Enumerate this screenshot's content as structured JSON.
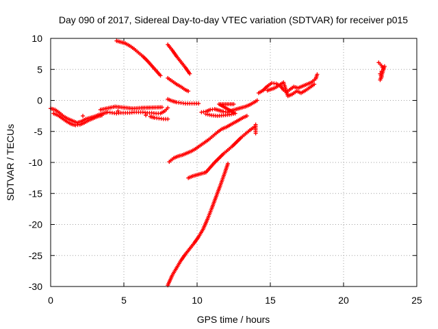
{
  "chart_data": {
    "type": "scatter",
    "title": "Day 090 of 2017, Sidereal Day-to-day VTEC variation (SDTVAR) for receiver p015",
    "xlabel": "GPS time / hours",
    "ylabel": "SDTVAR / TECUs",
    "xlim": [
      0,
      25
    ],
    "ylim": [
      -30,
      10
    ],
    "xticks": [
      0,
      5,
      10,
      15,
      20,
      25
    ],
    "xtick_labels": [
      "0",
      "5",
      "10",
      "15",
      "20",
      "25"
    ],
    "yticks": [
      -30,
      -25,
      -20,
      -15,
      -10,
      -5,
      0,
      5,
      10
    ],
    "ytick_labels": [
      "-30",
      "-25",
      "-20",
      "-15",
      "-10",
      "-5",
      "0",
      "5",
      "10"
    ],
    "grid": true,
    "grid_style": "dotted",
    "marker": "plus",
    "color": "#ff0000",
    "series": [
      {
        "points": [
          [
            0.0,
            -1.3
          ],
          [
            0.3,
            -1.5
          ],
          [
            0.6,
            -2.0
          ],
          [
            0.9,
            -2.6
          ],
          [
            1.2,
            -3.0
          ],
          [
            1.5,
            -3.3
          ],
          [
            1.8,
            -3.6
          ],
          [
            2.1,
            -3.4
          ],
          [
            2.4,
            -3.0
          ],
          [
            2.7,
            -2.8
          ],
          [
            3.0,
            -2.6
          ],
          [
            3.3,
            -2.3
          ],
          [
            3.6,
            -2.1
          ],
          [
            3.9,
            -1.9
          ],
          [
            4.2,
            -2.0
          ],
          [
            4.5,
            -2.1
          ],
          [
            4.8,
            -2.0
          ],
          [
            5.1,
            -2.0
          ],
          [
            5.4,
            -2.0
          ],
          [
            5.7,
            -1.9
          ],
          [
            6.0,
            -1.9
          ],
          [
            6.3,
            -1.9
          ],
          [
            6.6,
            -2.0
          ],
          [
            6.9,
            -2.0
          ],
          [
            7.2,
            -2.1
          ],
          [
            7.5,
            -2.1
          ],
          [
            7.8,
            -1.7
          ],
          [
            8.0,
            -1.2
          ],
          [
            0.2,
            -2.1
          ],
          [
            0.5,
            -2.4
          ],
          [
            0.8,
            -2.9
          ],
          [
            1.1,
            -3.4
          ],
          [
            1.4,
            -3.8
          ],
          [
            1.7,
            -4.0
          ],
          [
            2.0,
            -3.9
          ],
          [
            2.3,
            -3.6
          ],
          [
            2.6,
            -3.2
          ],
          [
            2.9,
            -2.9
          ],
          [
            3.2,
            -2.6
          ],
          [
            3.5,
            -2.4
          ],
          [
            6.8,
            -2.6
          ],
          [
            7.1,
            -2.8
          ],
          [
            7.4,
            -2.9
          ],
          [
            7.7,
            -3.0
          ],
          [
            8.0,
            -3.0
          ],
          [
            3.4,
            -1.5
          ],
          [
            4.4,
            -1.0
          ],
          [
            5.6,
            -1.3
          ],
          [
            6.2,
            -1.2
          ],
          [
            7.6,
            -1.1
          ],
          [
            2.2,
            -2.5
          ],
          [
            4.6,
            -1.7
          ],
          [
            6.5,
            -2.4
          ]
        ]
      },
      {
        "points": [
          [
            4.5,
            9.6
          ],
          [
            4.8,
            9.4
          ],
          [
            5.1,
            9.2
          ],
          [
            5.4,
            8.8
          ],
          [
            5.7,
            8.3
          ],
          [
            6.0,
            7.7
          ],
          [
            6.3,
            7.1
          ],
          [
            6.6,
            6.4
          ],
          [
            6.9,
            5.6
          ],
          [
            7.2,
            4.8
          ],
          [
            7.5,
            4.0
          ]
        ]
      },
      {
        "points": [
          [
            8.0,
            9.0
          ],
          [
            8.3,
            8.1
          ],
          [
            8.6,
            7.1
          ],
          [
            8.9,
            6.2
          ],
          [
            9.2,
            5.3
          ],
          [
            9.5,
            4.3
          ]
        ]
      },
      {
        "points": [
          [
            8.0,
            3.6
          ],
          [
            8.3,
            3.1
          ],
          [
            8.6,
            2.6
          ],
          [
            8.9,
            2.2
          ],
          [
            9.2,
            1.7
          ],
          [
            9.4,
            1.5
          ]
        ]
      },
      {
        "points": [
          [
            8.0,
            0.2
          ],
          [
            8.3,
            -0.1
          ],
          [
            8.6,
            -0.3
          ],
          [
            8.9,
            -0.4
          ],
          [
            9.2,
            -0.5
          ],
          [
            9.5,
            -0.5
          ],
          [
            9.8,
            -0.5
          ],
          [
            10.1,
            -0.5
          ]
        ]
      },
      {
        "points": [
          [
            10.3,
            -1.9
          ],
          [
            10.6,
            -1.8
          ],
          [
            10.9,
            -1.5
          ],
          [
            11.2,
            -1.4
          ],
          [
            11.5,
            -1.6
          ],
          [
            11.8,
            -1.8
          ],
          [
            12.1,
            -1.9
          ],
          [
            12.4,
            -1.6
          ],
          [
            12.7,
            -1.4
          ],
          [
            13.0,
            -1.2
          ],
          [
            13.3,
            -1.0
          ],
          [
            13.6,
            -0.7
          ],
          [
            13.9,
            -0.3
          ],
          [
            14.1,
            0.0
          ],
          [
            10.6,
            -2.2
          ],
          [
            11.0,
            -2.4
          ],
          [
            11.4,
            -2.5
          ],
          [
            11.8,
            -2.4
          ],
          [
            12.2,
            -2.3
          ],
          [
            12.6,
            -2.1
          ],
          [
            11.5,
            -0.6
          ],
          [
            12.5,
            -0.6
          ]
        ]
      },
      {
        "points": [
          [
            8.1,
            -9.9
          ],
          [
            8.4,
            -9.3
          ],
          [
            8.7,
            -9.0
          ],
          [
            9.0,
            -8.8
          ],
          [
            9.3,
            -8.5
          ],
          [
            9.6,
            -8.2
          ],
          [
            9.9,
            -7.8
          ],
          [
            10.2,
            -7.3
          ],
          [
            10.5,
            -6.8
          ],
          [
            10.8,
            -6.3
          ],
          [
            11.1,
            -5.7
          ],
          [
            11.4,
            -5.1
          ],
          [
            11.7,
            -4.6
          ],
          [
            12.0,
            -4.3
          ],
          [
            12.3,
            -3.9
          ],
          [
            12.6,
            -3.5
          ],
          [
            12.9,
            -3.1
          ],
          [
            13.2,
            -2.7
          ],
          [
            13.4,
            -2.5
          ]
        ]
      },
      {
        "points": [
          [
            9.4,
            -12.5
          ],
          [
            9.7,
            -12.2
          ],
          [
            10.0,
            -12.0
          ],
          [
            10.3,
            -11.8
          ],
          [
            10.6,
            -11.6
          ],
          [
            10.9,
            -10.8
          ],
          [
            11.2,
            -10.0
          ],
          [
            11.5,
            -9.3
          ],
          [
            11.8,
            -8.6
          ],
          [
            12.1,
            -8.0
          ],
          [
            12.4,
            -7.4
          ],
          [
            12.7,
            -6.7
          ],
          [
            13.0,
            -6.0
          ],
          [
            13.3,
            -5.4
          ],
          [
            13.6,
            -4.8
          ],
          [
            13.9,
            -4.3
          ],
          [
            14.0,
            -3.9
          ],
          [
            14.0,
            -5.3
          ]
        ]
      },
      {
        "points": [
          [
            8.0,
            -29.8
          ],
          [
            8.3,
            -28.2
          ],
          [
            8.6,
            -27.0
          ],
          [
            8.9,
            -25.8
          ],
          [
            9.2,
            -24.8
          ],
          [
            9.5,
            -23.9
          ],
          [
            9.8,
            -23.0
          ],
          [
            10.1,
            -22.0
          ],
          [
            10.4,
            -20.8
          ],
          [
            10.7,
            -19.2
          ],
          [
            11.0,
            -17.4
          ],
          [
            11.3,
            -15.5
          ],
          [
            11.6,
            -13.6
          ],
          [
            11.9,
            -11.6
          ],
          [
            12.1,
            -10.2
          ]
        ]
      },
      {
        "points": [
          [
            14.2,
            1.2
          ],
          [
            14.5,
            1.6
          ],
          [
            14.8,
            2.3
          ],
          [
            15.1,
            2.8
          ],
          [
            15.4,
            2.7
          ],
          [
            15.7,
            2.3
          ],
          [
            15.9,
            1.7
          ],
          [
            16.1,
            1.3
          ],
          [
            16.3,
            1.7
          ],
          [
            16.6,
            2.2
          ],
          [
            16.9,
            2.0
          ],
          [
            17.2,
            2.3
          ],
          [
            17.5,
            2.6
          ],
          [
            17.8,
            2.9
          ],
          [
            18.1,
            3.5
          ],
          [
            18.2,
            4.2
          ],
          [
            14.8,
            1.6
          ],
          [
            15.3,
            2.0
          ],
          [
            15.9,
            2.9
          ],
          [
            16.2,
            0.7
          ],
          [
            16.5,
            1.0
          ],
          [
            16.8,
            1.5
          ],
          [
            17.1,
            1.2
          ],
          [
            17.4,
            1.6
          ],
          [
            17.7,
            2.1
          ],
          [
            18.0,
            2.6
          ]
        ]
      },
      {
        "points": [
          [
            22.4,
            6.1
          ],
          [
            22.6,
            5.6
          ],
          [
            22.7,
            5.1
          ],
          [
            22.6,
            4.7
          ],
          [
            22.5,
            4.3
          ],
          [
            22.6,
            3.8
          ],
          [
            22.5,
            3.3
          ],
          [
            22.8,
            5.5
          ]
        ]
      }
    ]
  }
}
